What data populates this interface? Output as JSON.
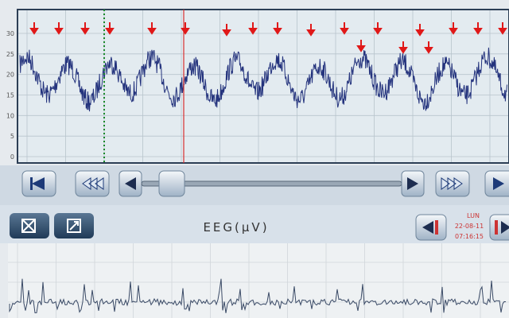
{
  "trend_panel": {
    "y_labels": [
      "30",
      "25",
      "20",
      "15",
      "10",
      "5",
      "0"
    ]
  },
  "toolbar": {
    "channel": "EEG(µV)",
    "day": "LUN",
    "date": "22-08-11",
    "time": "07:16:15"
  }
}
